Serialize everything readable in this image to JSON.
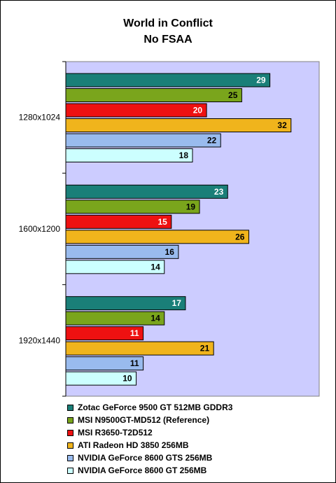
{
  "chart_data": {
    "type": "bar",
    "orientation": "horizontal",
    "title": "World in Conflict",
    "subtitle": "No FSAA",
    "categories": [
      "1280x1024",
      "1600x1200",
      "1920x1440"
    ],
    "xlim": [
      0,
      36
    ],
    "grid": false,
    "legend_position": "bottom",
    "plot_background": "#ccccff",
    "series": [
      {
        "name": "Zotac GeForce 9500 GT 512MB GDDR3",
        "color": "#1a7f78",
        "label_color": "#ffffff",
        "values": [
          29,
          23,
          17
        ]
      },
      {
        "name": "MSI N9500GT-MD512 (Reference)",
        "color": "#7aa51c",
        "label_color": "#000000",
        "values": [
          25,
          19,
          14
        ]
      },
      {
        "name": "MSI R3650-T2D512",
        "color": "#ee1111",
        "label_color": "#ffffff",
        "values": [
          20,
          15,
          11
        ]
      },
      {
        "name": "ATI Radeon HD 3850 256MB",
        "color": "#f0b41c",
        "label_color": "#000000",
        "values": [
          32,
          26,
          21
        ]
      },
      {
        "name": "NVIDIA GeForce 8600 GTS 256MB",
        "color": "#99bbee",
        "label_color": "#000000",
        "values": [
          22,
          16,
          11
        ]
      },
      {
        "name": "NVIDIA GeForce 8600 GT 256MB",
        "color": "#ccffff",
        "label_color": "#000000",
        "values": [
          18,
          14,
          10
        ]
      }
    ]
  }
}
